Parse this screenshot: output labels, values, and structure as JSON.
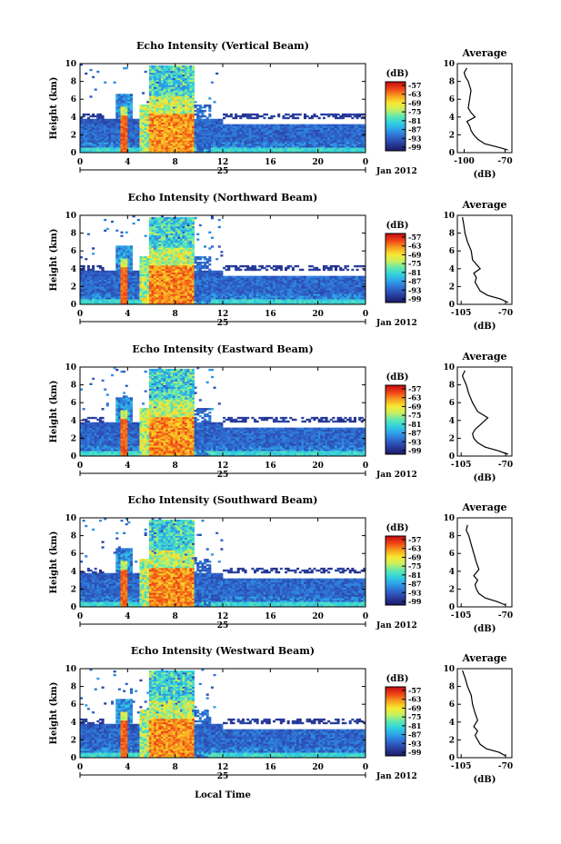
{
  "colorscale": {
    "stops": [
      "#1e1e6e",
      "#2a3fa0",
      "#2f6ad0",
      "#2fa0e8",
      "#30d0e0",
      "#60e8b0",
      "#c8f060",
      "#f8e830",
      "#f8a020",
      "#f04818",
      "#c81010"
    ]
  },
  "xlabel_bottom": "Local Time",
  "chart_data": [
    {
      "type": "heatmap",
      "title": "Echo Intensity (Vertical Beam)",
      "ylabel": "Height (km)",
      "x_ticks": [
        "0",
        "4",
        "8",
        "12",
        "16",
        "20",
        "0"
      ],
      "xlim": [
        0,
        24
      ],
      "ylim": [
        0,
        10
      ],
      "y_ticks": [
        "0",
        "2",
        "4",
        "6",
        "8",
        "10"
      ],
      "day_label": "25",
      "date_label": "Jan 2012",
      "colorbar": {
        "unit": "(dB)",
        "ticks": [
          "-57",
          "-63",
          "-69",
          "-75",
          "-81",
          "-87",
          "-93",
          "-99"
        ]
      },
      "profile": {
        "title": "Average",
        "xlabel": "(dB)",
        "x_ticks": [
          "-100",
          "-70"
        ],
        "y_ticks": [
          "0",
          "2",
          "4",
          "6",
          "8",
          "10"
        ],
        "xlim": [
          -105,
          -65
        ],
        "points": [
          [
            -68,
            0.3
          ],
          [
            -75,
            0.6
          ],
          [
            -85,
            1.0
          ],
          [
            -90,
            1.5
          ],
          [
            -93,
            2.0
          ],
          [
            -95,
            2.5
          ],
          [
            -96,
            3.0
          ],
          [
            -98,
            3.5
          ],
          [
            -92,
            4.0
          ],
          [
            -95,
            4.5
          ],
          [
            -97,
            5.0
          ],
          [
            -96,
            6.0
          ],
          [
            -95,
            7.0
          ],
          [
            -97,
            8.0
          ],
          [
            -99,
            8.5
          ],
          [
            -100,
            9.0
          ],
          [
            -98,
            9.5
          ]
        ]
      }
    },
    {
      "type": "heatmap",
      "title": "Echo Intensity (Northward Beam)",
      "ylabel": "Height (km)",
      "x_ticks": [
        "0",
        "4",
        "8",
        "12",
        "16",
        "20",
        "0"
      ],
      "xlim": [
        0,
        24
      ],
      "ylim": [
        0,
        10
      ],
      "y_ticks": [
        "0",
        "2",
        "4",
        "6",
        "8",
        "10"
      ],
      "day_label": "25",
      "date_label": "Jan 2012",
      "colorbar": {
        "unit": "(dB)",
        "ticks": [
          "-57",
          "-63",
          "-69",
          "-75",
          "-81",
          "-87",
          "-93",
          "-99"
        ]
      },
      "profile": {
        "title": "Average",
        "xlabel": "(dB)",
        "x_ticks": [
          "-105",
          "-70"
        ],
        "y_ticks": [
          "0",
          "2",
          "4",
          "6",
          "8",
          "10"
        ],
        "xlim": [
          -108,
          -65
        ],
        "points": [
          [
            -68,
            0.2
          ],
          [
            -74,
            0.6
          ],
          [
            -84,
            1.0
          ],
          [
            -90,
            1.5
          ],
          [
            -92,
            2.0
          ],
          [
            -94,
            2.5
          ],
          [
            -93,
            3.0
          ],
          [
            -95,
            3.5
          ],
          [
            -90,
            4.0
          ],
          [
            -93,
            4.5
          ],
          [
            -96,
            5.0
          ],
          [
            -97,
            6.0
          ],
          [
            -100,
            7.0
          ],
          [
            -102,
            8.0
          ],
          [
            -103,
            9.0
          ],
          [
            -104,
            9.8
          ]
        ]
      }
    },
    {
      "type": "heatmap",
      "title": "Echo Intensity (Eastward Beam)",
      "ylabel": "Height (km)",
      "x_ticks": [
        "0",
        "4",
        "8",
        "12",
        "16",
        "20",
        "0"
      ],
      "xlim": [
        0,
        24
      ],
      "ylim": [
        0,
        10
      ],
      "y_ticks": [
        "0",
        "2",
        "4",
        "6",
        "8",
        "10"
      ],
      "day_label": "25",
      "date_label": "Jan 2012",
      "colorbar": {
        "unit": "(dB)",
        "ticks": [
          "-57",
          "-63",
          "-69",
          "-75",
          "-81",
          "-87",
          "-93",
          "-99"
        ]
      },
      "profile": {
        "title": "Average",
        "xlabel": "(dB)",
        "x_ticks": [
          "-105",
          "-70"
        ],
        "y_ticks": [
          "0",
          "2",
          "4",
          "6",
          "8",
          "10"
        ],
        "xlim": [
          -108,
          -65
        ],
        "points": [
          [
            -68,
            0.2
          ],
          [
            -76,
            0.6
          ],
          [
            -86,
            1.0
          ],
          [
            -92,
            1.5
          ],
          [
            -95,
            2.0
          ],
          [
            -96,
            2.5
          ],
          [
            -94,
            3.0
          ],
          [
            -90,
            3.5
          ],
          [
            -84,
            4.3
          ],
          [
            -92,
            5.0
          ],
          [
            -96,
            6.0
          ],
          [
            -99,
            7.0
          ],
          [
            -101,
            8.0
          ],
          [
            -104,
            9.0
          ],
          [
            -102,
            9.6
          ]
        ]
      }
    },
    {
      "type": "heatmap",
      "title": "Echo Intensity (Southward Beam)",
      "ylabel": "Height (km)",
      "x_ticks": [
        "0",
        "4",
        "8",
        "12",
        "16",
        "20",
        "0"
      ],
      "xlim": [
        0,
        24
      ],
      "ylim": [
        0,
        10
      ],
      "y_ticks": [
        "0",
        "2",
        "4",
        "6",
        "8",
        "10"
      ],
      "day_label": "25",
      "date_label": "Jan 2012",
      "colorbar": {
        "unit": "(dB)",
        "ticks": [
          "-57",
          "-63",
          "-69",
          "-75",
          "-81",
          "-87",
          "-93",
          "-99"
        ]
      },
      "profile": {
        "title": "Average",
        "xlabel": "(dB)",
        "x_ticks": [
          "-105",
          "-70"
        ],
        "y_ticks": [
          "0",
          "2",
          "4",
          "6",
          "8",
          "10"
        ],
        "xlim": [
          -108,
          -65
        ],
        "points": [
          [
            -70,
            0.2
          ],
          [
            -77,
            0.6
          ],
          [
            -86,
            1.0
          ],
          [
            -91,
            1.5
          ],
          [
            -93,
            2.0
          ],
          [
            -94,
            2.5
          ],
          [
            -92,
            3.0
          ],
          [
            -95,
            3.5
          ],
          [
            -91,
            4.2
          ],
          [
            -93,
            5.0
          ],
          [
            -95,
            6.0
          ],
          [
            -97,
            7.0
          ],
          [
            -99,
            8.0
          ],
          [
            -101,
            8.6
          ],
          [
            -100,
            9.2
          ]
        ]
      }
    },
    {
      "type": "heatmap",
      "title": "Echo Intensity (Westward Beam)",
      "ylabel": "Height (km)",
      "x_ticks": [
        "0",
        "4",
        "8",
        "12",
        "16",
        "20",
        "0"
      ],
      "xlim": [
        0,
        24
      ],
      "ylim": [
        0,
        10
      ],
      "y_ticks": [
        "0",
        "2",
        "4",
        "6",
        "8",
        "10"
      ],
      "day_label": "25",
      "date_label": "Jan 2012",
      "colorbar": {
        "unit": "(dB)",
        "ticks": [
          "-57",
          "-63",
          "-69",
          "-75",
          "-81",
          "-87",
          "-93",
          "-99"
        ]
      },
      "profile": {
        "title": "Average",
        "xlabel": "(dB)",
        "x_ticks": [
          "-105",
          "-70"
        ],
        "y_ticks": [
          "0",
          "2",
          "4",
          "6",
          "8",
          "10"
        ],
        "xlim": [
          -108,
          -65
        ],
        "points": [
          [
            -70,
            0.2
          ],
          [
            -75,
            0.6
          ],
          [
            -85,
            1.0
          ],
          [
            -90,
            1.5
          ],
          [
            -92,
            2.0
          ],
          [
            -94,
            2.5
          ],
          [
            -92,
            3.0
          ],
          [
            -95,
            3.5
          ],
          [
            -92,
            4.2
          ],
          [
            -94,
            5.0
          ],
          [
            -96,
            6.0
          ],
          [
            -97,
            7.0
          ],
          [
            -100,
            8.0
          ],
          [
            -102,
            9.0
          ],
          [
            -104,
            9.8
          ]
        ]
      }
    }
  ]
}
